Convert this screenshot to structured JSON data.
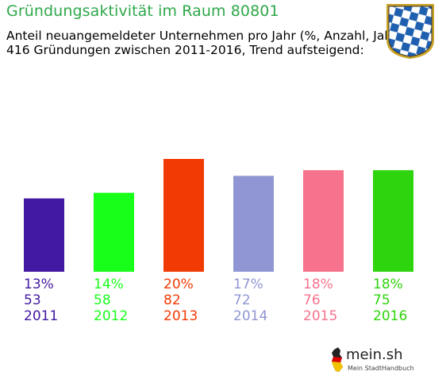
{
  "header": {
    "title": "Gründungsaktivität im Raum 80801",
    "subtitle_line1": "Anteil neuangemeldeter Unternehmen pro Jahr (%, Anzahl, Jahr)",
    "subtitle_line2": "416 Gründungen zwischen 2011-2016, Trend aufsteigend:"
  },
  "crest": {
    "icon": "bavarian-lozenge-crest-icon",
    "colors": [
      "#1f5fb0",
      "#ffffff"
    ]
  },
  "logo": {
    "icon": "germany-map-icon",
    "text": "mein.sh",
    "subtext": "Mein StadtHandbuch"
  },
  "chart_data": {
    "type": "bar",
    "categories": [
      "2011",
      "2012",
      "2013",
      "2014",
      "2015",
      "2016"
    ],
    "values": [
      13,
      14,
      20,
      17,
      18,
      18
    ],
    "counts": [
      53,
      58,
      82,
      72,
      76,
      75
    ],
    "percent_labels": [
      "13%",
      "14%",
      "20%",
      "17%",
      "18%",
      "18%"
    ],
    "colors": [
      "#4119a3",
      "#18ff1a",
      "#f23a05",
      "#9096d3",
      "#f7728c",
      "#2ed40e"
    ],
    "ylim": [
      0,
      20
    ],
    "grid": false,
    "legend": "none"
  }
}
